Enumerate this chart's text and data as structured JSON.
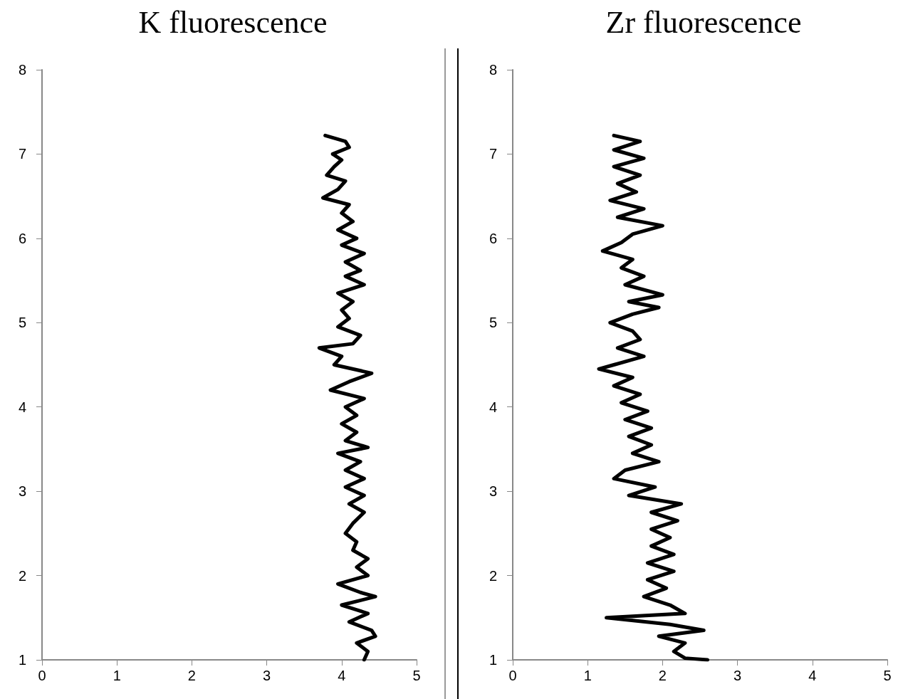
{
  "chart_data": [
    {
      "type": "line",
      "title": "K fluorescence",
      "color": "#000000",
      "marker": "none",
      "grid": false,
      "xlim": [
        0,
        5
      ],
      "xticks": [
        0,
        1,
        2,
        3,
        4,
        5
      ],
      "ylim": [
        1,
        8
      ],
      "yticks": [
        1,
        2,
        3,
        4,
        5,
        6,
        7,
        8
      ],
      "x": [
        3.78,
        4.05,
        4.1,
        3.88,
        4.0,
        3.9,
        3.8,
        4.05,
        3.95,
        3.75,
        4.1,
        4.0,
        4.15,
        3.95,
        4.2,
        4.0,
        4.3,
        4.05,
        4.25,
        4.05,
        4.3,
        3.95,
        4.15,
        4.0,
        4.1,
        3.95,
        4.25,
        4.15,
        3.7,
        4.0,
        3.9,
        4.4,
        4.1,
        3.85,
        4.3,
        4.05,
        4.2,
        4.0,
        4.2,
        4.05,
        4.35,
        3.95,
        4.25,
        4.05,
        4.3,
        4.05,
        4.3,
        4.1,
        4.3,
        4.15,
        4.05,
        4.2,
        4.15,
        4.35,
        4.2,
        4.35,
        3.95,
        4.25,
        4.45,
        4.0,
        4.35,
        4.1,
        4.4,
        4.45,
        4.2,
        4.35,
        4.3
      ],
      "values": [
        7.22,
        7.15,
        7.08,
        7.0,
        6.93,
        6.85,
        6.75,
        6.68,
        6.58,
        6.48,
        6.4,
        6.3,
        6.2,
        6.1,
        6.0,
        5.92,
        5.82,
        5.72,
        5.62,
        5.55,
        5.45,
        5.35,
        5.25,
        5.15,
        5.05,
        4.95,
        4.85,
        4.75,
        4.7,
        4.6,
        4.5,
        4.4,
        4.3,
        4.2,
        4.1,
        4.0,
        3.9,
        3.8,
        3.7,
        3.6,
        3.52,
        3.45,
        3.35,
        3.25,
        3.15,
        3.05,
        2.95,
        2.85,
        2.75,
        2.62,
        2.5,
        2.4,
        2.3,
        2.2,
        2.1,
        2.0,
        1.9,
        1.8,
        1.75,
        1.65,
        1.55,
        1.45,
        1.35,
        1.28,
        1.2,
        1.1,
        1.0
      ]
    },
    {
      "type": "line",
      "title": "Zr fluorescence",
      "color": "#000000",
      "marker": "none",
      "grid": false,
      "xlim": [
        0,
        5
      ],
      "xticks": [
        0,
        1,
        2,
        3,
        4,
        5
      ],
      "ylim": [
        1,
        8
      ],
      "yticks": [
        1,
        2,
        3,
        4,
        5,
        6,
        7,
        8
      ],
      "x": [
        1.35,
        1.7,
        1.35,
        1.75,
        1.35,
        1.7,
        1.4,
        1.65,
        1.3,
        1.75,
        1.4,
        2.0,
        1.6,
        1.45,
        1.2,
        1.6,
        1.45,
        1.75,
        1.5,
        2.0,
        1.55,
        1.95,
        1.6,
        1.3,
        1.6,
        1.7,
        1.4,
        1.75,
        1.35,
        1.15,
        1.6,
        1.35,
        1.7,
        1.45,
        1.8,
        1.5,
        1.85,
        1.55,
        1.85,
        1.6,
        1.95,
        1.5,
        1.35,
        1.9,
        1.55,
        2.25,
        1.85,
        2.2,
        1.85,
        2.1,
        1.85,
        2.15,
        1.8,
        2.15,
        1.8,
        2.05,
        1.75,
        2.1,
        2.3,
        1.25,
        2.1,
        2.55,
        1.95,
        2.3,
        2.15,
        2.3,
        2.6
      ],
      "values": [
        7.22,
        7.15,
        7.05,
        6.95,
        6.85,
        6.75,
        6.65,
        6.55,
        6.45,
        6.35,
        6.25,
        6.15,
        6.05,
        5.95,
        5.85,
        5.75,
        5.65,
        5.55,
        5.45,
        5.33,
        5.25,
        5.18,
        5.1,
        5.0,
        4.9,
        4.8,
        4.7,
        4.6,
        4.5,
        4.45,
        4.35,
        4.25,
        4.15,
        4.05,
        3.95,
        3.85,
        3.75,
        3.65,
        3.55,
        3.45,
        3.35,
        3.25,
        3.15,
        3.05,
        2.95,
        2.85,
        2.75,
        2.65,
        2.55,
        2.45,
        2.35,
        2.25,
        2.15,
        2.05,
        1.95,
        1.85,
        1.75,
        1.65,
        1.55,
        1.5,
        1.42,
        1.35,
        1.28,
        1.2,
        1.1,
        1.02,
        1.0
      ]
    }
  ]
}
